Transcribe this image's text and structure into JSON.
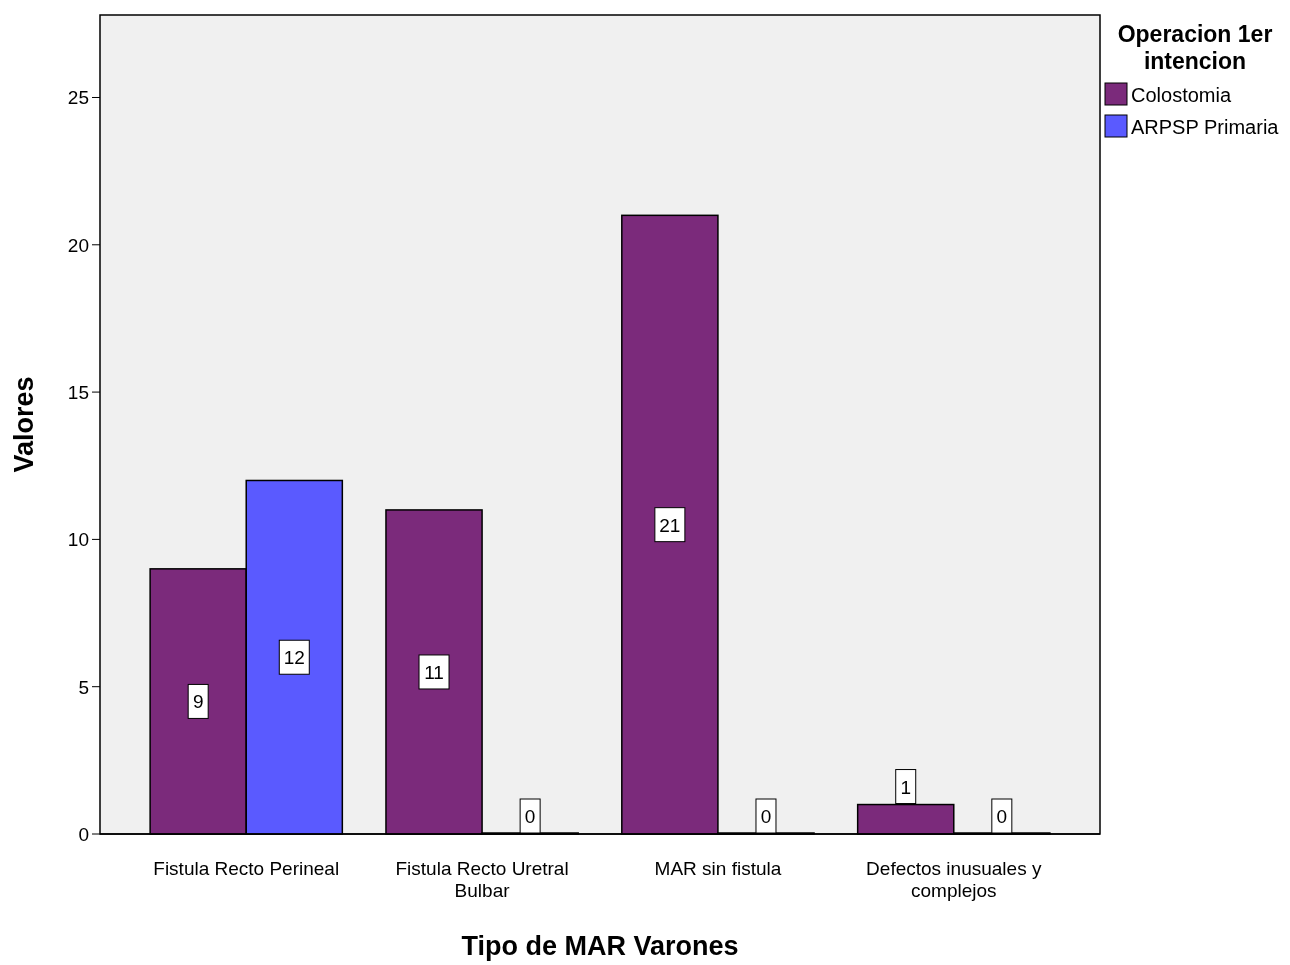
{
  "chart_data": {
    "type": "bar",
    "xlabel": "Tipo de MAR Varones",
    "ylabel": "Valores",
    "legend_title": "Operacion 1er intencion",
    "categories": [
      "Fistula Recto Perineal",
      "Fistula Recto Uretral Bulbar",
      "MAR sin fistula",
      "Defectos inusuales y complejos"
    ],
    "series": [
      {
        "name": "Colostomia",
        "color": "#7b2a7b",
        "values": [
          9,
          11,
          21,
          1
        ]
      },
      {
        "name": "ARPSP Primaria",
        "color": "#5a5aff",
        "values": [
          12,
          0,
          0,
          0
        ]
      }
    ],
    "ylim": [
      0,
      27.8
    ],
    "yticks": [
      0,
      5,
      10,
      15,
      20,
      25
    ],
    "grid": false,
    "legend": "top right",
    "data_labels": true
  }
}
